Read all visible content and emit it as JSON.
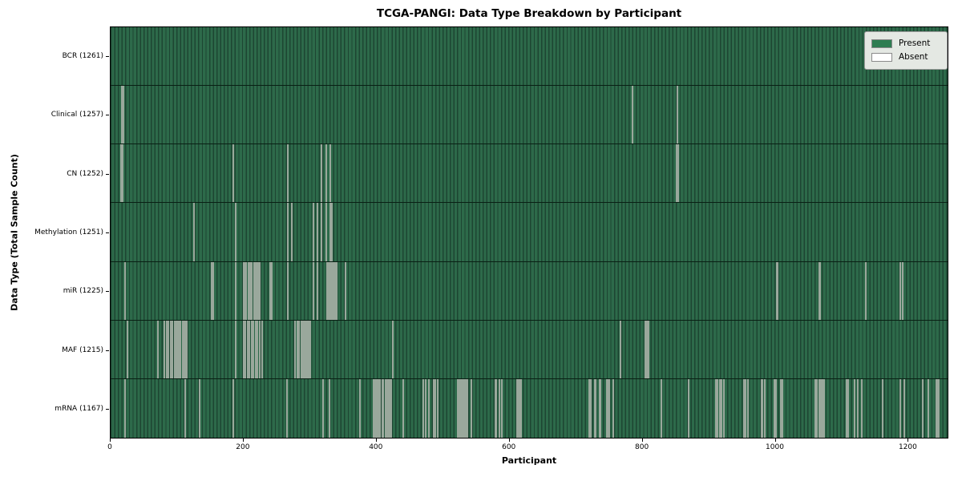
{
  "figure": {
    "title": "TCGA-PANGI: Data Type Breakdown by Participant",
    "xlabel": "Participant",
    "ylabel": "Data Type (Total Sample Count)"
  },
  "chart_data": {
    "type": "heatmap",
    "title": "TCGA-PANGI: Data Type Breakdown by Participant",
    "xlabel": "Participant",
    "ylabel": "Data Type (Total Sample Count)",
    "x_ticks": [
      0,
      200,
      400,
      600,
      800,
      1000,
      1200
    ],
    "x_range": [
      0,
      1261
    ],
    "total_participants": 1261,
    "grid": false,
    "legend_position": "upper right",
    "legend": [
      {
        "label": "Present",
        "color": "#2e7d52"
      },
      {
        "label": "Absent",
        "color": "#ffffff"
      }
    ],
    "colors": {
      "present_fill": "#2d6a4a",
      "present_stripe_dark": "#1d4532",
      "absent_line": "#9aa89c",
      "row_divider": "#092014",
      "legend_bg": "#e4e8e3"
    },
    "rows": [
      {
        "name": "BCR",
        "label": "BCR (1261)",
        "present_count": 1261,
        "absent_participants": []
      },
      {
        "name": "Clinical",
        "label": "Clinical (1257)",
        "present_count": 1257,
        "absent_participants": [
          16,
          18,
          785,
          853
        ]
      },
      {
        "name": "CN",
        "label": "CN (1252)",
        "present_count": 1252,
        "absent_participants": [
          15,
          17,
          184,
          266,
          317,
          324,
          330,
          852,
          854
        ]
      },
      {
        "name": "Methylation",
        "label": "Methylation (1251)",
        "present_count": 1251,
        "absent_participants": [
          124,
          187,
          266,
          272,
          304,
          310,
          317,
          324,
          330,
          332
        ]
      },
      {
        "name": "miR",
        "label": "miR (1225)",
        "present_count": 1225,
        "absent_participants": [
          20,
          151,
          153,
          187,
          199,
          201,
          203,
          207,
          209,
          211,
          215,
          217,
          219,
          221,
          223,
          239,
          242,
          266,
          304,
          310,
          325,
          327,
          328,
          331,
          333,
          334,
          337,
          339,
          353,
          1002,
          1004,
          1066,
          1068,
          1137,
          1189,
          1192
        ]
      },
      {
        "name": "MAF",
        "label": "MAF (1215)",
        "present_count": 1215,
        "absent_participants": [
          24,
          70,
          80,
          83,
          85,
          86,
          89,
          92,
          95,
          98,
          100,
          101,
          104,
          107,
          110,
          112,
          114,
          187,
          199,
          202,
          205,
          206,
          208,
          211,
          213,
          214,
          217,
          220,
          223,
          227,
          277,
          280,
          282,
          283,
          286,
          289,
          291,
          292,
          295,
          297,
          299,
          424,
          767,
          805,
          807,
          809
        ]
      },
      {
        "name": "mRNA",
        "label": "mRNA (1167)",
        "present_count": 1167,
        "absent_participants": [
          20,
          111,
          133,
          183,
          265,
          319,
          329,
          374,
          395,
          397,
          399,
          401,
          403,
          405,
          408,
          410,
          413,
          415,
          418,
          420,
          422,
          440,
          470,
          473,
          478,
          486,
          488,
          491,
          522,
          524,
          526,
          528,
          530,
          532,
          534,
          536,
          542,
          578,
          580,
          584,
          588,
          611,
          612,
          614,
          615,
          617,
          720,
          722,
          728,
          730,
          735,
          737,
          746,
          748,
          750,
          756,
          828,
          870,
          911,
          913,
          917,
          919,
          923,
          953,
          955,
          959,
          979,
          981,
          985,
          999,
          1001,
          1008,
          1011,
          1060,
          1062,
          1063,
          1066,
          1068,
          1070,
          1072,
          1074,
          1108,
          1110,
          1120,
          1125,
          1130,
          1162,
          1189,
          1195,
          1222,
          1231,
          1243,
          1245,
          1247
        ]
      }
    ]
  }
}
